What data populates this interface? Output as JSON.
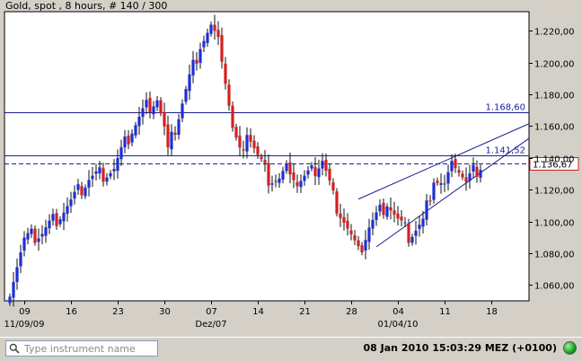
{
  "chart_data": {
    "type": "candlestick",
    "title": "Gold, spot , 8 hours, # 140 / 300",
    "y_ticks": [
      1.06,
      1.08,
      1.1,
      1.12,
      1.14,
      1.16,
      1.18,
      1.2,
      1.22
    ],
    "y_tick_labels": [
      "1.060,00",
      "1.080,00",
      "1.100,00",
      "1.120,00",
      "1.140,00",
      "1.160,00",
      "1.180,00",
      "1.200,00",
      "1.220,00"
    ],
    "ylim": [
      1.05,
      1.232
    ],
    "x_ticks": [
      {
        "index": 4,
        "label": "09"
      },
      {
        "index": 17,
        "label": "16"
      },
      {
        "index": 30,
        "label": "23"
      },
      {
        "index": 43,
        "label": "30"
      },
      {
        "index": 56,
        "label": "07"
      },
      {
        "index": 69,
        "label": "14"
      },
      {
        "index": 82,
        "label": "21"
      },
      {
        "index": 95,
        "label": "28"
      },
      {
        "index": 108,
        "label": "04"
      },
      {
        "index": 121,
        "label": "11"
      },
      {
        "index": 134,
        "label": "18"
      }
    ],
    "x_sublabels": [
      {
        "index": 4,
        "label": "11/09/09"
      },
      {
        "index": 56,
        "label": "Dez/07"
      },
      {
        "index": 108,
        "label": "01/04/10"
      }
    ],
    "horizontal_levels": [
      {
        "value": 1.1686,
        "label": "1.168,60",
        "style": "solid"
      },
      {
        "value": 1.14152,
        "label": "1.141,52",
        "style": "solid"
      },
      {
        "value": 1.13667,
        "label": "1.136,67",
        "style": "dashed",
        "current": true
      }
    ],
    "trend_lines": [
      {
        "from": [
          97,
          1.114
        ],
        "to": [
          135,
          1.152
        ]
      },
      {
        "from": [
          102,
          1.084
        ],
        "to": [
          135,
          1.137
        ]
      }
    ],
    "key_points": [
      [
        0,
        1.058
      ],
      [
        4,
        1.088
      ],
      [
        9,
        1.093
      ],
      [
        17,
        1.112
      ],
      [
        22,
        1.127
      ],
      [
        29,
        1.133
      ],
      [
        34,
        1.158
      ],
      [
        38,
        1.172
      ],
      [
        41,
        1.178
      ],
      [
        43,
        1.158
      ],
      [
        44,
        1.143
      ],
      [
        48,
        1.175
      ],
      [
        53,
        1.212
      ],
      [
        56,
        1.222
      ],
      [
        59,
        1.205
      ],
      [
        62,
        1.158
      ],
      [
        64,
        1.142
      ],
      [
        66,
        1.158
      ],
      [
        69,
        1.14
      ],
      [
        72,
        1.127
      ],
      [
        75,
        1.126
      ],
      [
        78,
        1.135
      ],
      [
        80,
        1.124
      ],
      [
        84,
        1.13
      ],
      [
        87,
        1.139
      ],
      [
        90,
        1.115
      ],
      [
        93,
        1.101
      ],
      [
        95,
        1.09
      ],
      [
        97,
        1.079
      ],
      [
        100,
        1.097
      ],
      [
        103,
        1.106
      ],
      [
        105,
        1.113
      ],
      [
        108,
        1.1
      ],
      [
        111,
        1.091
      ],
      [
        115,
        1.099
      ],
      [
        118,
        1.128
      ],
      [
        121,
        1.122
      ],
      [
        124,
        1.138
      ],
      [
        127,
        1.124
      ],
      [
        129,
        1.131
      ],
      [
        131,
        1.136
      ]
    ],
    "colors": {
      "up": "#1e2ed6",
      "down": "#d42020",
      "line": "#1e1e90",
      "background": "#ffffff"
    },
    "grid": false
  },
  "toolbar": {
    "search_placeholder": "Type instrument name"
  },
  "status": {
    "clock": "08 Jan 2010 15:03:29  MEZ (+0100)"
  }
}
